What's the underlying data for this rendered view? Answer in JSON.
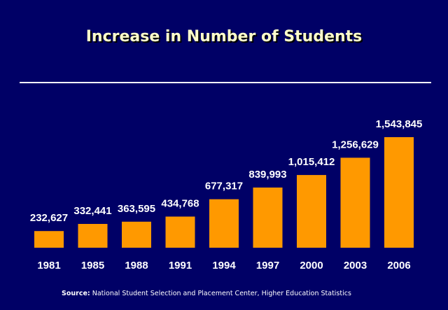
{
  "colors": {
    "background": "#000066",
    "bar": "#ff9900",
    "title": "#ffffcc",
    "text": "#ffffff"
  },
  "source": {
    "prefix": "Source:",
    "text": " National Student Selection and Placement Center, Higher Education Statistics"
  },
  "chart_data": {
    "type": "bar",
    "title": "Increase in Number of Students",
    "categories": [
      "1981",
      "1985",
      "1988",
      "1991",
      "1994",
      "1997",
      "2000",
      "2003",
      "2006"
    ],
    "values": [
      232627,
      332441,
      363595,
      434768,
      677317,
      839993,
      1015412,
      1256629,
      1543845
    ],
    "value_labels": [
      "232,627",
      "332,441",
      "363,595",
      "434,768",
      "677,317",
      "839,993",
      "1,015,412",
      "1,256,629",
      "1,543,845"
    ],
    "xlabel": "",
    "ylabel": "",
    "grid": false,
    "legend": "none"
  }
}
